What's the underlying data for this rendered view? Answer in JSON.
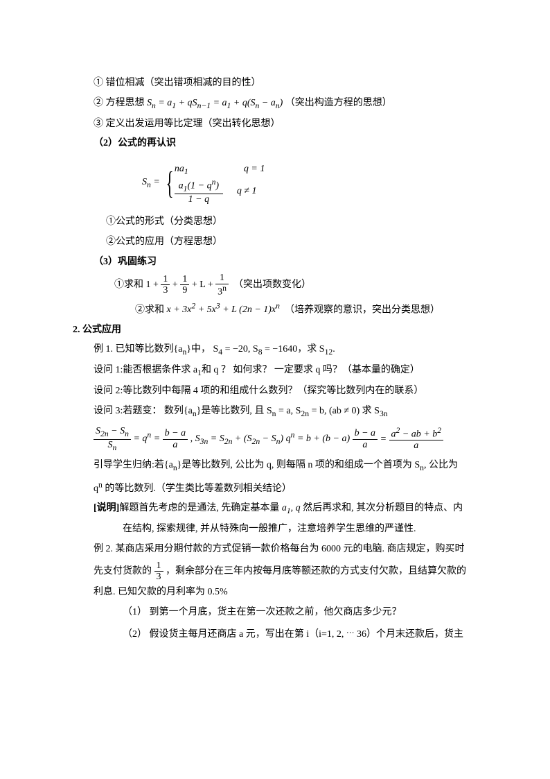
{
  "l1": "① 错位相减（突出错项相减的目的性）",
  "l2_pre": "② 方程思想 ",
  "l2_math": "S<sub>n</sub> = a<sub>1</sub> + qS<sub>n−1</sub> = a<sub>1</sub> + q(S<sub>n</sub> − a<sub>n</sub>)",
  "l2_post": "（突出构造方程的思想）",
  "l3": "③ 定义出发运用等比定理（突出转化思想）",
  "h2": "（2）公式的再认识",
  "formula_Sn": "S<sub>n</sub> = ",
  "formula_case1_lhs": "na<sub>1</sub>",
  "formula_case1_rhs": "q = 1",
  "formula_case2_num": "a<sub>1</sub>(1 − q<sup>n</sup>)",
  "formula_case2_den": "1 − q",
  "formula_case2_rhs": "q ≠ 1",
  "l4": "①公式的形式（分类思想）",
  "l5": "②公式的应用（方程思想）",
  "h3": "（3）巩固练习",
  "ex1_pre": "①求和 ",
  "ex1_one": "1 + ",
  "ex1_f1n": "1",
  "ex1_f1d": "3",
  "ex1_plus": " + ",
  "ex1_f2n": "1",
  "ex1_f2d": "9",
  "ex1_L": " + L  + ",
  "ex1_f3n": "1",
  "ex1_f3d": "3<sup>n</sup>",
  "ex1_post": "（突出项数变化）",
  "ex2_pre": "②求和 ",
  "ex2_math": "x + 3x<sup>2</sup> + 5x<sup>3</sup> + L  (2n − 1)x<sup>n</sup>",
  "ex2_post": "（培养观察的意识，突出分类思想）",
  "h4": "2. 公式应用",
  "eg1": "例 1. 已知等比数列{a<sub>n</sub>}中， S<sub>4</sub> = −20, S<sub>8</sub> = −1640，求 S<sub>12</sub>.",
  "q1": "设问 1:能否根据条件求 a<sub>1</sub>和 q ？ 如何求？ 一定要求 q 吗？（基本量的确定）",
  "q2": "设问 2:等比数列中每隔 4 项的和组成什么数列？（探究等比数列内在的联系）",
  "q3": "设问 3:若题变： 数列{a<sub>n</sub>}是等比数列, 且 S<sub>n</sub> = a, S<sub>2n</sub> = b, (ab ≠ 0) 求 S<sub>3n</sub>",
  "longf_l1n": "S<sub>2n</sub> − S<sub>n</sub>",
  "longf_l1d": "S<sub>n</sub>",
  "longf_eq1": " = q<sup>n</sup> = ",
  "longf_f2n": "b − a",
  "longf_f2d": "a",
  "longf_mid": " , S<sub>3n</sub> = S<sub>2n</sub> + (S<sub>2n</sub> − S<sub>n</sub>) q<sup>n</sup> = b + (b − a) ",
  "longf_eq2": " = ",
  "longf_f3n": "a<sup>2</sup> − ab + b<sup>2</sup>",
  "longf_f3d": "a",
  "ind1": "引导学生归纳:若{a<sub>n</sub>}是等比数列, 公比为 q, 则每隔 n 项的和组成一个首项为 S<sub>n</sub>, 公比为",
  "ind2": "q<sup>n</sup> 的等比数列.（学生类比等差数列相关结论）",
  "note1": "[说明]解题首先考虑的是通法, 先确定基本量 a<sub>1</sub>, q 然后再求和, 其次分析题目的特点、内",
  "note2": "在结构, 探索规律, 并从特殊向一般推广，注意培养学生思维的严谨性.",
  "eg2": "例 2. 某商店采用分期付款的方式促销一款价格每台为 6000 元的电脑. 商店规定，购买时",
  "eg2b_pre": "先支付货款的 ",
  "eg2b_f_n": "1",
  "eg2b_f_d": "3",
  "eg2b_post": "，剩余部分在三年内按每月底等额还款的方式支付欠款，且结算欠款的",
  "eg2c": "利息. 已知欠款的月利率为 0.5%",
  "sub1": "（1）  到第一个月底，货主在第一次还款之前，他欠商店多少元？",
  "sub2": "（2）  假设货主每月还商店 a 元，写出在第 i（i=1, 2, <sup>…</sup> 36）个月末还款后，货主"
}
